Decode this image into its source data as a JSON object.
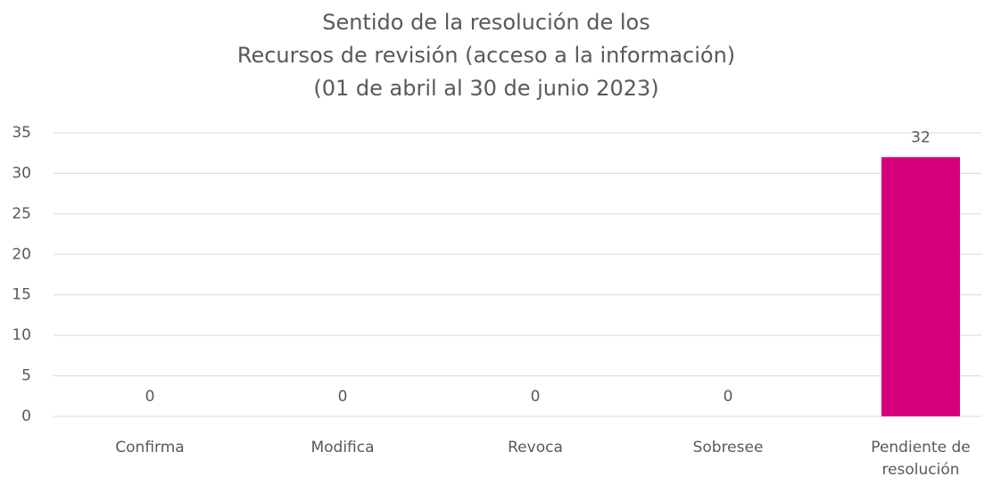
{
  "chart_data": {
    "type": "bar",
    "title": [
      "Sentido de la resolución de los",
      "Recursos de revisión (acceso a la información)",
      "(01 de abril al 30 de junio 2023)"
    ],
    "categories": [
      "Confirma",
      "Modifica",
      "Revoca",
      "Sobresee",
      "Pendiente de resolución"
    ],
    "values": [
      0,
      0,
      0,
      0,
      32
    ],
    "color": "#d6007f",
    "ylim": [
      0,
      35
    ],
    "yticks": [
      0,
      5,
      10,
      15,
      20,
      25,
      30,
      35
    ],
    "grid": true
  }
}
